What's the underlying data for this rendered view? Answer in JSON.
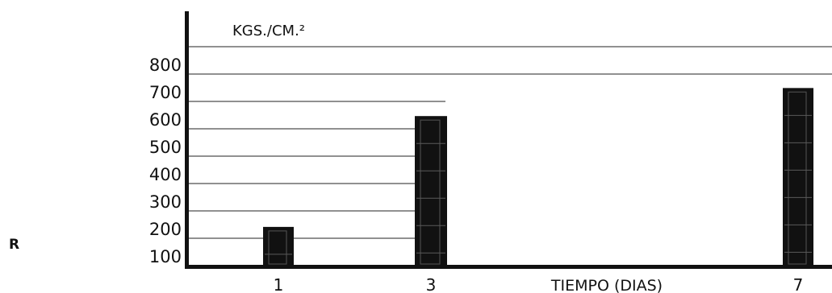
{
  "side_label": "R",
  "chart_data": {
    "type": "bar",
    "categories": [
      "1",
      "3",
      "7"
    ],
    "values": [
      195,
      590,
      690
    ],
    "ylabel": "KGS./CM.²",
    "xlabel": "TIEMPO (DIAS)",
    "yticks": [
      "100",
      "200",
      "300",
      "400",
      "500",
      "600",
      "700",
      "800"
    ],
    "ylim": [
      100,
      800
    ],
    "grid": true,
    "bar_color": "#111111"
  }
}
